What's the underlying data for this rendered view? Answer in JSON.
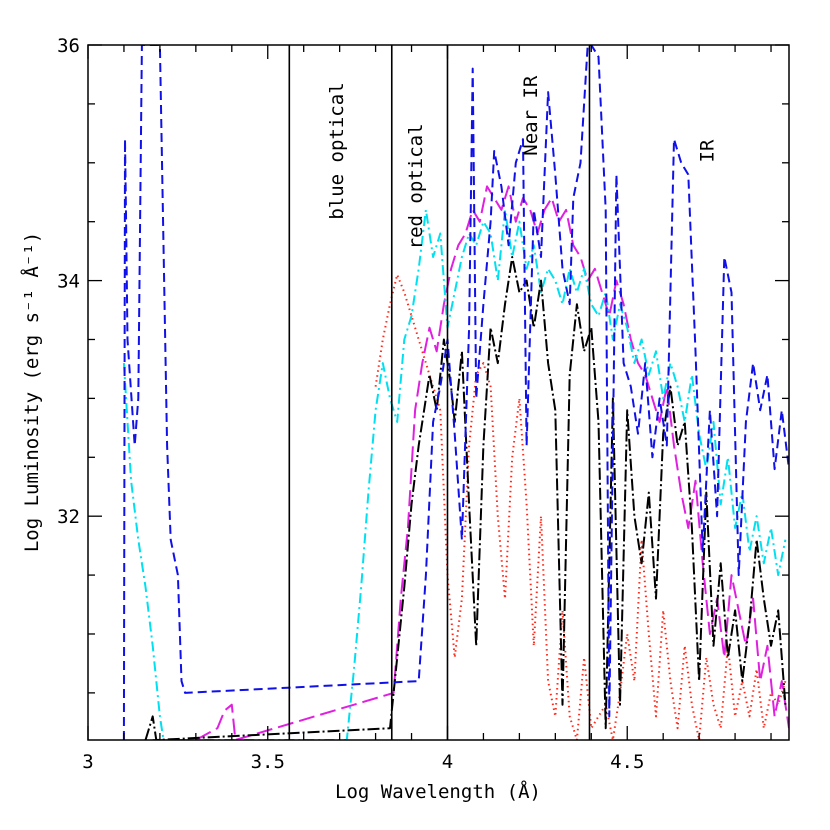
{
  "chart_data": {
    "type": "line",
    "xlabel": "Log Wavelength (Å)",
    "ylabel": "Log Luminosity (erg s⁻¹ Å⁻¹)",
    "xlim": [
      3.0,
      4.95
    ],
    "ylim": [
      30.1,
      36.0
    ],
    "x_ticks": [
      {
        "value": 3.0,
        "label": "3"
      },
      {
        "value": 3.5,
        "label": "3.5"
      },
      {
        "value": 4.0,
        "label": "4"
      },
      {
        "value": 4.5,
        "label": "4.5"
      }
    ],
    "y_ticks": [
      {
        "value": 32,
        "label": "32"
      },
      {
        "value": 34,
        "label": "34"
      },
      {
        "value": 36,
        "label": "36"
      }
    ],
    "band_boundaries": [
      3.56,
      3.845,
      4.0,
      4.395
    ],
    "band_labels": [
      {
        "text": "blue optical",
        "x": 3.69,
        "y": 35.1
      },
      {
        "text": "red optical",
        "x": 3.91,
        "y": 34.8
      },
      {
        "text": "Near IR",
        "x": 4.23,
        "y": 35.4
      },
      {
        "text": "IR",
        "x": 4.72,
        "y": 35.1
      }
    ],
    "series": [
      {
        "name": "red-dotted",
        "color": "#ff2a1a",
        "dash": "1.5 3.5",
        "x": [
          3.8,
          3.82,
          3.84,
          3.86,
          3.88,
          3.9,
          3.92,
          3.94,
          3.96,
          3.98,
          4.0,
          4.02,
          4.04,
          4.06,
          4.08,
          4.1,
          4.12,
          4.14,
          4.16,
          4.18,
          4.2,
          4.22,
          4.24,
          4.26,
          4.28,
          4.3,
          4.32,
          4.34,
          4.36,
          4.38,
          4.4,
          4.42,
          4.44,
          4.46,
          4.48,
          4.5,
          4.52,
          4.54,
          4.56,
          4.58,
          4.6,
          4.62,
          4.64,
          4.66,
          4.68,
          4.7,
          4.72,
          4.74,
          4.76,
          4.78,
          4.8,
          4.82,
          4.84,
          4.86,
          4.88,
          4.9,
          4.92,
          4.94
        ],
        "y": [
          33.1,
          33.5,
          33.8,
          34.05,
          33.9,
          33.7,
          33.5,
          33.3,
          33.1,
          32.9,
          31.5,
          30.8,
          31.3,
          32.6,
          33.2,
          33.3,
          33.1,
          32.0,
          31.3,
          32.5,
          33.0,
          32.1,
          30.9,
          32.0,
          30.6,
          30.3,
          31.2,
          30.3,
          30.1,
          30.8,
          30.2,
          30.3,
          30.4,
          30.1,
          30.5,
          31.0,
          30.6,
          31.8,
          31.0,
          30.3,
          31.2,
          30.6,
          30.2,
          30.9,
          30.4,
          30.1,
          30.8,
          30.4,
          30.2,
          30.9,
          30.3,
          30.6,
          30.3,
          30.7,
          30.2,
          30.5,
          30.4,
          30.6
        ]
      },
      {
        "name": "magenta-longdash",
        "color": "#e020e0",
        "dash": "16 6",
        "x": [
          3.18,
          3.2,
          3.3,
          3.36,
          3.38,
          3.4,
          3.41,
          3.85,
          3.87,
          3.89,
          3.91,
          3.93,
          3.95,
          3.97,
          3.99,
          4.01,
          4.03,
          4.05,
          4.07,
          4.09,
          4.11,
          4.13,
          4.15,
          4.17,
          4.19,
          4.21,
          4.23,
          4.25,
          4.27,
          4.29,
          4.31,
          4.33,
          4.35,
          4.37,
          4.39,
          4.41,
          4.43,
          4.45,
          4.47,
          4.49,
          4.51,
          4.53,
          4.55,
          4.57,
          4.59,
          4.61,
          4.63,
          4.65,
          4.67,
          4.69,
          4.71,
          4.73,
          4.75,
          4.77,
          4.79,
          4.81,
          4.83,
          4.85,
          4.87,
          4.89,
          4.91,
          4.93,
          4.95
        ],
        "y": [
          30.1,
          30.1,
          30.1,
          30.2,
          30.35,
          30.4,
          30.1,
          30.5,
          31.3,
          31.9,
          32.9,
          33.3,
          33.6,
          33.4,
          33.8,
          34.1,
          34.3,
          34.4,
          34.6,
          34.5,
          34.8,
          34.7,
          34.6,
          34.8,
          34.5,
          34.7,
          34.6,
          34.4,
          34.6,
          34.7,
          34.5,
          34.6,
          34.3,
          34.2,
          34.0,
          34.1,
          33.9,
          33.7,
          34.0,
          33.8,
          33.5,
          33.3,
          33.2,
          33.0,
          32.8,
          33.1,
          32.6,
          32.2,
          31.9,
          32.3,
          31.6,
          31.0,
          31.3,
          30.8,
          31.5,
          31.2,
          30.9,
          31.3,
          30.6,
          30.9,
          30.3,
          30.6,
          30.2
        ]
      },
      {
        "name": "cyan-dashdot",
        "color": "#00e0f0",
        "dash": "10 4 2 4",
        "x": [
          3.1,
          3.11,
          3.12,
          3.14,
          3.16,
          3.18,
          3.2,
          3.21,
          3.72,
          3.74,
          3.76,
          3.78,
          3.8,
          3.82,
          3.84,
          3.86,
          3.88,
          3.9,
          3.92,
          3.94,
          3.96,
          3.98,
          4.0,
          4.02,
          4.04,
          4.06,
          4.08,
          4.1,
          4.12,
          4.14,
          4.16,
          4.18,
          4.2,
          4.22,
          4.24,
          4.26,
          4.28,
          4.3,
          4.32,
          4.34,
          4.36,
          4.38,
          4.4,
          4.42,
          4.44,
          4.46,
          4.48,
          4.5,
          4.52,
          4.54,
          4.56,
          4.58,
          4.6,
          4.62,
          4.64,
          4.66,
          4.68,
          4.7,
          4.72,
          4.74,
          4.76,
          4.78,
          4.8,
          4.82,
          4.84,
          4.86,
          4.88,
          4.9,
          4.92,
          4.94
        ],
        "y": [
          33.3,
          32.8,
          32.3,
          31.8,
          31.4,
          30.9,
          30.3,
          30.1,
          30.1,
          30.7,
          31.4,
          32.2,
          32.9,
          33.3,
          33.0,
          32.8,
          33.5,
          33.7,
          34.1,
          34.6,
          34.2,
          34.4,
          33.6,
          33.9,
          34.2,
          34.4,
          34.3,
          34.5,
          34.4,
          34.0,
          34.6,
          34.2,
          34.5,
          34.1,
          34.3,
          33.9,
          34.1,
          34.0,
          33.8,
          34.1,
          33.9,
          34.1,
          33.8,
          33.7,
          33.9,
          33.5,
          33.8,
          33.6,
          33.3,
          33.5,
          33.2,
          33.4,
          33.0,
          33.3,
          33.1,
          32.8,
          33.2,
          32.7,
          32.4,
          32.8,
          32.1,
          32.5,
          31.9,
          32.2,
          31.7,
          32.0,
          31.6,
          31.9,
          31.5,
          31.8
        ]
      },
      {
        "name": "black-dashdot",
        "color": "#000000",
        "dash": "12 3 2 3",
        "x": [
          3.16,
          3.17,
          3.18,
          3.19,
          3.84,
          3.86,
          3.88,
          3.9,
          3.92,
          3.94,
          3.95,
          3.97,
          3.99,
          4.01,
          4.02,
          4.04,
          4.06,
          4.08,
          4.1,
          4.12,
          4.14,
          4.16,
          4.18,
          4.2,
          4.22,
          4.24,
          4.26,
          4.28,
          4.3,
          4.32,
          4.34,
          4.36,
          4.38,
          4.4,
          4.42,
          4.44,
          4.46,
          4.48,
          4.5,
          4.52,
          4.54,
          4.56,
          4.58,
          4.6,
          4.62,
          4.64,
          4.66,
          4.68,
          4.7,
          4.72,
          4.74,
          4.76,
          4.78,
          4.8,
          4.82,
          4.84,
          4.86,
          4.88,
          4.9,
          4.92,
          4.94
        ],
        "y": [
          30.1,
          30.2,
          30.3,
          30.1,
          30.2,
          30.8,
          31.4,
          32.1,
          32.6,
          33.0,
          33.2,
          32.9,
          33.5,
          33.1,
          32.8,
          33.4,
          32.1,
          30.9,
          32.6,
          33.6,
          33.3,
          33.8,
          34.2,
          33.9,
          34.0,
          33.6,
          34.0,
          33.3,
          32.9,
          30.4,
          33.2,
          33.8,
          33.4,
          33.6,
          32.8,
          30.2,
          33.0,
          30.4,
          32.9,
          32.0,
          31.6,
          32.2,
          31.3,
          32.7,
          33.1,
          32.6,
          32.8,
          31.9,
          30.6,
          32.2,
          30.9,
          31.6,
          30.8,
          31.2,
          30.6,
          31.1,
          31.8,
          31.3,
          30.9,
          31.2,
          30.4
        ]
      },
      {
        "name": "blue-dashed",
        "color": "#1010e8",
        "dash": "9 5",
        "x": [
          3.1,
          3.103,
          3.106,
          3.11,
          3.13,
          3.14,
          3.15,
          3.16,
          3.17,
          3.19,
          3.2,
          3.22,
          3.23,
          3.25,
          3.26,
          3.27,
          3.92,
          3.94,
          3.96,
          3.98,
          4.0,
          4.02,
          4.04,
          4.06,
          4.07,
          4.08,
          4.1,
          4.12,
          4.13,
          4.15,
          4.17,
          4.19,
          4.21,
          4.22,
          4.24,
          4.26,
          4.28,
          4.3,
          4.32,
          4.34,
          4.35,
          4.37,
          4.39,
          4.4,
          4.42,
          4.44,
          4.45,
          4.47,
          4.49,
          4.51,
          4.53,
          4.55,
          4.57,
          4.59,
          4.61,
          4.63,
          4.65,
          4.67,
          4.69,
          4.71,
          4.73,
          4.75,
          4.77,
          4.79,
          4.81,
          4.83,
          4.85,
          4.87,
          4.89,
          4.91,
          4.93,
          4.95
        ],
        "y": [
          30.1,
          35.2,
          34.5,
          33.5,
          32.6,
          33.0,
          36.0,
          36.0,
          36.0,
          36.0,
          36.0,
          32.6,
          31.8,
          31.5,
          30.6,
          30.5,
          30.6,
          31.5,
          32.8,
          33.1,
          33.5,
          32.7,
          31.8,
          33.6,
          35.8,
          33.0,
          33.8,
          34.5,
          35.1,
          34.8,
          34.3,
          35.0,
          35.2,
          32.6,
          34.6,
          34.2,
          35.6,
          34.9,
          34.1,
          33.8,
          34.7,
          35.0,
          36.0,
          36.0,
          35.9,
          34.6,
          30.3,
          34.9,
          33.3,
          33.1,
          32.7,
          33.3,
          32.5,
          33.0,
          32.6,
          35.2,
          35.0,
          34.9,
          33.4,
          31.7,
          32.9,
          32.0,
          34.2,
          33.9,
          31.5,
          32.8,
          33.3,
          32.9,
          33.2,
          32.4,
          32.9,
          32.4
        ]
      }
    ]
  }
}
